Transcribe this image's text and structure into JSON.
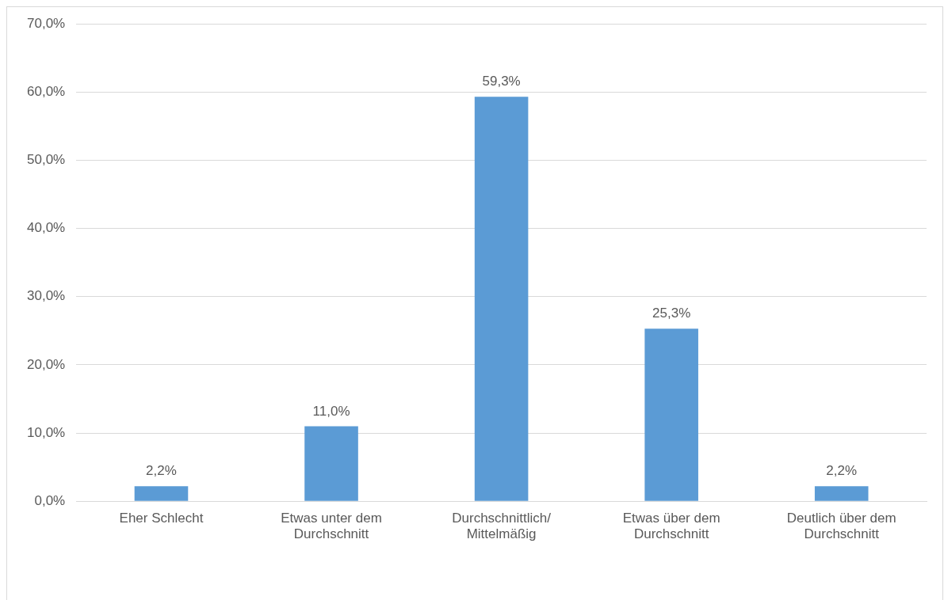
{
  "chart_data": {
    "type": "bar",
    "categories": [
      "Eher Schlecht",
      "Etwas unter dem Durchschnitt",
      "Durchschnittlich/ Mittelmäßig",
      "Etwas über dem Durchschnitt",
      "Deutlich über dem Durchschnitt"
    ],
    "values": [
      2.2,
      11.0,
      59.3,
      25.3,
      2.2
    ],
    "value_labels": [
      "2,2%",
      "11,0%",
      "59,3%",
      "25,3%",
      "2,2%"
    ],
    "color": "#5b9bd5",
    "ylim": [
      0,
      70
    ],
    "yticks": [
      {
        "value": 0,
        "label": "0,0%"
      },
      {
        "value": 10,
        "label": "10,0%"
      },
      {
        "value": 20,
        "label": "20,0%"
      },
      {
        "value": 30,
        "label": "30,0%"
      },
      {
        "value": 40,
        "label": "40,0%"
      },
      {
        "value": 50,
        "label": "50,0%"
      },
      {
        "value": 60,
        "label": "60,0%"
      },
      {
        "value": 70,
        "label": "70,0%"
      }
    ],
    "grid": "y",
    "legend": false
  }
}
